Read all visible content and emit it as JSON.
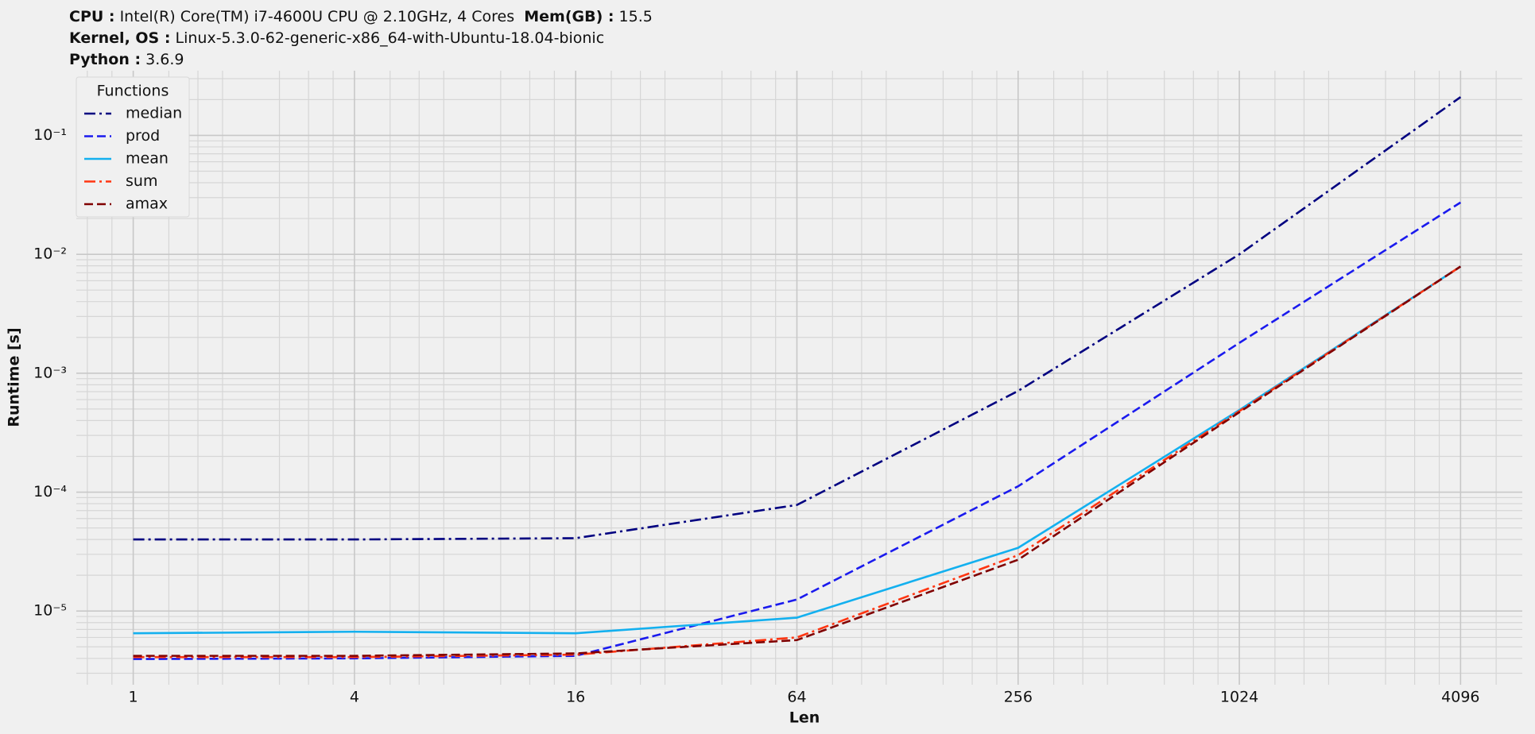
{
  "chart_data": {
    "type": "line",
    "info": [
      [
        {
          "label": "CPU :",
          "value": "Intel(R) Core(TM) i7-4600U CPU @ 2.10GHz, 4 Cores"
        },
        {
          "label": "Mem(GB) :",
          "value": "15.5"
        }
      ],
      [
        {
          "label": "Kernel, OS :",
          "value": "Linux-5.3.0-62-generic-x86_64-with-Ubuntu-18.04-bionic"
        }
      ],
      [
        {
          "label": "Python :",
          "value": "3.6.9"
        }
      ]
    ],
    "x_label": "Len",
    "y_label": "Runtime [s]",
    "x": [
      1,
      4,
      16,
      64,
      256,
      1024,
      4096
    ],
    "xlim": [
      0.7,
      6030
    ],
    "xticks": [
      1,
      4,
      16,
      64,
      256,
      1024,
      4096
    ],
    "x_log_base": 2,
    "ylim": [
      2.4e-06,
      0.35
    ],
    "yticks": [
      {
        "value": 0.1,
        "label": "10⁻¹"
      },
      {
        "value": 0.01,
        "label": "10⁻²"
      },
      {
        "value": 0.001,
        "label": "10⁻³"
      },
      {
        "value": 0.0001,
        "label": "10⁻⁴"
      },
      {
        "value": 1e-05,
        "label": "10⁻⁵"
      }
    ],
    "y_log": true,
    "grid": true,
    "legend_title": "Functions",
    "legend_position": "upper-left",
    "series": [
      {
        "name": "median",
        "color": "#000080",
        "style": "dashdot",
        "values": [
          4e-05,
          4e-05,
          4.1e-05,
          7.8e-05,
          0.00071,
          0.01,
          0.21
        ]
      },
      {
        "name": "prod",
        "color": "#1a1aee",
        "style": "dashed",
        "values": [
          3.95e-06,
          4e-06,
          4.2e-06,
          1.25e-05,
          0.000112,
          0.0018,
          0.0273
        ]
      },
      {
        "name": "mean",
        "color": "#13b0ef",
        "style": "solid",
        "values": [
          6.5e-06,
          6.7e-06,
          6.5e-06,
          8.8e-06,
          3.4e-05,
          0.00049,
          0.0079
        ]
      },
      {
        "name": "sum",
        "color": "#ff3511",
        "style": "dashdot",
        "values": [
          4.1e-06,
          4.1e-06,
          4.3e-06,
          6e-06,
          2.95e-05,
          0.00048,
          0.0079
        ]
      },
      {
        "name": "amax",
        "color": "#800000",
        "style": "dashed",
        "values": [
          4.2e-06,
          4.2e-06,
          4.4e-06,
          5.7e-06,
          2.7e-05,
          0.00047,
          0.0079
        ]
      }
    ]
  }
}
